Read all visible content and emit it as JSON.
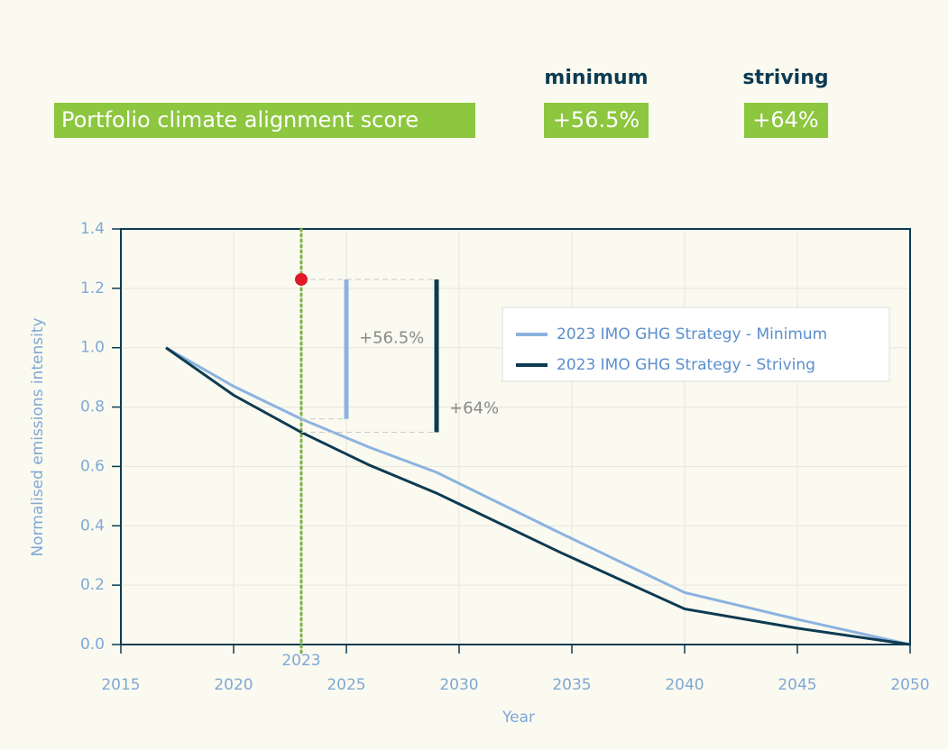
{
  "header": {
    "title": "Portfolio climate alignment score",
    "columns": [
      {
        "label": "minimum",
        "score": "+56.5%"
      },
      {
        "label": "striving",
        "score": "+64%"
      }
    ]
  },
  "chart_data": {
    "type": "line",
    "xlabel": "Year",
    "ylabel": "Normalised emissions intensity",
    "x": [
      2017,
      2020,
      2023,
      2026,
      2029,
      2034.5,
      2040,
      2045,
      2050
    ],
    "series": [
      {
        "name": "2023 IMO GHG Strategy - Minimum",
        "color": "#8cb3e0",
        "values": [
          1.0,
          0.87,
          0.76,
          0.665,
          0.58,
          0.375,
          0.175,
          0.085,
          0.0
        ]
      },
      {
        "name": "2023 IMO GHG Strategy - Striving",
        "color": "#0d3b52",
        "values": [
          1.0,
          0.84,
          0.715,
          0.605,
          0.51,
          0.31,
          0.12,
          0.055,
          0.0
        ]
      }
    ],
    "xlim": [
      2015,
      2050
    ],
    "xticks": [
      2015,
      2020,
      2025,
      2030,
      2035,
      2040,
      2045,
      2050
    ],
    "ylim": [
      0,
      1.4
    ],
    "yticks": [
      {
        "value": 0,
        "label": "0.0"
      },
      0.2,
      0.4,
      0.6,
      0.8,
      {
        "value": 1,
        "label": "1.0"
      },
      1.2,
      1.4
    ],
    "grid": true,
    "legend": "upper right",
    "vline": {
      "x": 2023,
      "label": "2023",
      "color": "#7ab342"
    },
    "marker": {
      "x": 2023,
      "y": 1.23,
      "color": "#e0192b"
    },
    "brackets": [
      {
        "x": 2025,
        "from": 1.23,
        "to": 0.76,
        "label": "+56.5%",
        "color": "#8cb3e0"
      },
      {
        "x": 2029,
        "from": 1.23,
        "to": 0.715,
        "label": "+64%",
        "color": "#0d3b52"
      }
    ]
  }
}
